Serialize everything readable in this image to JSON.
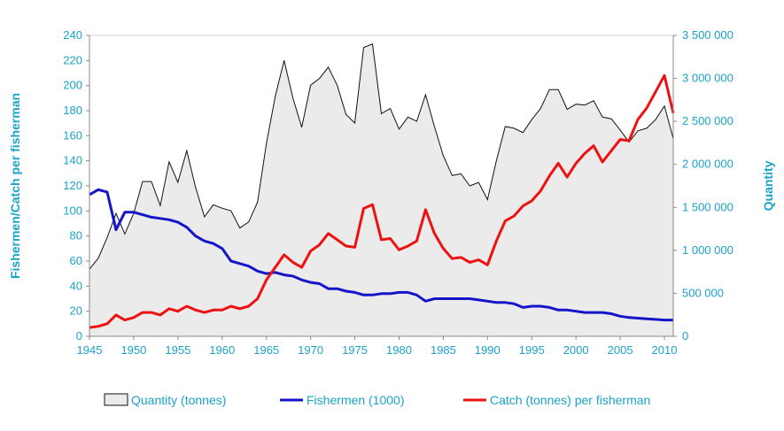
{
  "chart_data": {
    "type": "line",
    "left_axis": {
      "label": "Fishermen/Catch per fisherman",
      "range": [
        0,
        240
      ],
      "ticks": [
        "0",
        "20",
        "40",
        "60",
        "80",
        "100",
        "120",
        "140",
        "160",
        "180",
        "200",
        "220",
        "240"
      ]
    },
    "right_axis": {
      "label": "Quantity",
      "range": [
        0,
        3500000
      ],
      "ticks": [
        "0",
        "500 000",
        "1 000 000",
        "1 500 000",
        "2 000 000",
        "2 500 000",
        "3 000 000",
        "3 500 000"
      ]
    },
    "x_axis": {
      "range": [
        1945,
        2011
      ],
      "ticks": [
        "1945",
        "1950",
        "1955",
        "1960",
        "1965",
        "1970",
        "1975",
        "1980",
        "1985",
        "1990",
        "1995",
        "2000",
        "2005",
        "2010"
      ]
    },
    "grid": false,
    "legend_position": "bottom",
    "x": [
      1945,
      1946,
      1947,
      1948,
      1949,
      1950,
      1951,
      1952,
      1953,
      1954,
      1955,
      1956,
      1957,
      1958,
      1959,
      1960,
      1961,
      1962,
      1963,
      1964,
      1965,
      1966,
      1967,
      1968,
      1969,
      1970,
      1971,
      1972,
      1973,
      1974,
      1975,
      1976,
      1977,
      1978,
      1979,
      1980,
      1981,
      1982,
      1983,
      1984,
      1985,
      1986,
      1987,
      1988,
      1989,
      1990,
      1991,
      1992,
      1993,
      1994,
      1995,
      1996,
      1997,
      1998,
      1999,
      2000,
      2001,
      2002,
      2003,
      2004,
      2005,
      2006,
      2007,
      2008,
      2009,
      2010,
      2011
    ],
    "series": [
      {
        "name": "Quantity (tonnes)",
        "kind": "area",
        "axis": "right",
        "color": "#111111",
        "fill": "#ebebeb",
        "values": [
          780000,
          910000,
          1150000,
          1430000,
          1190000,
          1430000,
          1800000,
          1800000,
          1520000,
          2030000,
          1790000,
          2160000,
          1730000,
          1390000,
          1530000,
          1490000,
          1460000,
          1260000,
          1330000,
          1560000,
          2240000,
          2790000,
          3210000,
          2770000,
          2430000,
          2920000,
          3000000,
          3130000,
          2920000,
          2580000,
          2480000,
          3360000,
          3400000,
          2590000,
          2650000,
          2410000,
          2550000,
          2500000,
          2810000,
          2440000,
          2100000,
          1870000,
          1890000,
          1750000,
          1790000,
          1590000,
          2040000,
          2440000,
          2420000,
          2370000,
          2520000,
          2650000,
          2870000,
          2870000,
          2640000,
          2700000,
          2690000,
          2740000,
          2550000,
          2530000,
          2400000,
          2260000,
          2390000,
          2420000,
          2520000,
          2680000,
          2300000
        ]
      },
      {
        "name": "Fishermen (1000)",
        "kind": "line",
        "axis": "left",
        "color": "#1414c8",
        "values": [
          113,
          117,
          115,
          85,
          99,
          99,
          97,
          95,
          94,
          93,
          91,
          87,
          80,
          76,
          74,
          70,
          60,
          58,
          56,
          52,
          50,
          51,
          49,
          48,
          45,
          43,
          42,
          38,
          38,
          36,
          35,
          33,
          33,
          34,
          34,
          35,
          35,
          33,
          28,
          30,
          30,
          30,
          30,
          30,
          29,
          28,
          27,
          27,
          26,
          23,
          24,
          24,
          23,
          21,
          21,
          20,
          19,
          19,
          19,
          18,
          16,
          15,
          14.5,
          14,
          13.5,
          13,
          13
        ]
      },
      {
        "name": "Catch (tonnes) per fisherman",
        "kind": "line",
        "axis": "left",
        "color": "#ee1111",
        "values": [
          7,
          8,
          10,
          17,
          13,
          15,
          19,
          19,
          17,
          22,
          20,
          24,
          21,
          19,
          21,
          21,
          24,
          22,
          24,
          30,
          45,
          55,
          65,
          59,
          55,
          68,
          73,
          82,
          77,
          72,
          71,
          102,
          105,
          77,
          78,
          69,
          72,
          76,
          101,
          82,
          70,
          62,
          63,
          59,
          61,
          57,
          76,
          92,
          96,
          104,
          108,
          116,
          128,
          138,
          127,
          138,
          146,
          152,
          139,
          148,
          157,
          156,
          173,
          182,
          195,
          208,
          178
        ]
      }
    ]
  }
}
